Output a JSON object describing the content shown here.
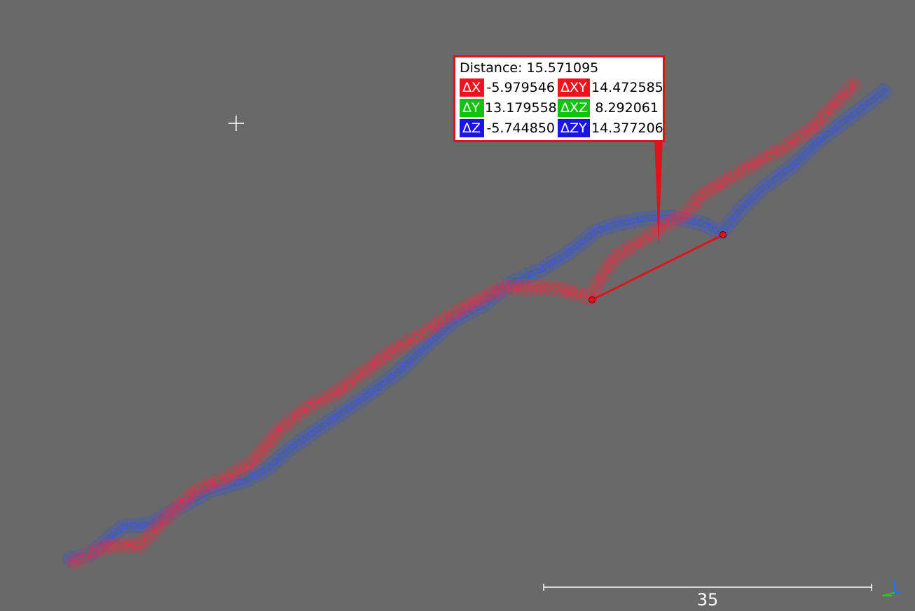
{
  "distance_label": {
    "title": "Distance: 15.571095",
    "rows": [
      {
        "a_name": "ΔX",
        "a_value": "-5.979546",
        "a_color": "#f0121e",
        "b_name": "ΔXY",
        "b_value": "14.472585",
        "b_color": "#f0121e"
      },
      {
        "a_name": "ΔY",
        "a_value": "13.179558",
        "a_color": "#16c010",
        "b_name": "ΔXZ",
        "b_value": "8.292061",
        "b_color": "#16c010"
      },
      {
        "a_name": "ΔZ",
        "a_value": "-5.744850",
        "a_color": "#1a14e6",
        "b_name": "ΔZY",
        "b_value": "14.377206",
        "b_color": "#1a14e6"
      }
    ],
    "border_color": "#e0121e"
  },
  "scale_bar": {
    "value": "35"
  },
  "colors": {
    "background": "#696969",
    "cloud_a": "#f0283c",
    "cloud_b": "#2e52e6",
    "measure_line": "#e0121e"
  },
  "icons": {
    "cursor": "crosshair-icon",
    "axes": "axis-triad-icon"
  }
}
